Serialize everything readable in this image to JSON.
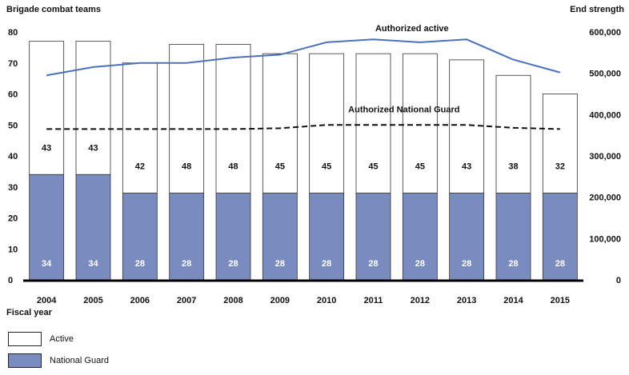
{
  "chart_data": {
    "type": "bar",
    "left_axis_title": "Brigade combat teams",
    "right_axis_title": "End strength",
    "xlabel": "Fiscal year",
    "categories": [
      "2004",
      "2005",
      "2006",
      "2007",
      "2008",
      "2009",
      "2010",
      "2011",
      "2012",
      "2013",
      "2014",
      "2015"
    ],
    "ylim": [
      0,
      80
    ],
    "yticks": [
      0,
      10,
      20,
      30,
      40,
      50,
      60,
      70,
      80
    ],
    "y2lim": [
      0,
      600000
    ],
    "y2ticks": [
      0,
      100000,
      200000,
      300000,
      400000,
      500000,
      600000
    ],
    "y2tick_labels": [
      "0",
      "100,000",
      "200,000",
      "300,000",
      "400,000",
      "500,000",
      "600,000"
    ],
    "stacked": true,
    "series": [
      {
        "name": "National Guard",
        "type": "bar",
        "color": "#7a8bbf",
        "values": [
          34,
          34,
          28,
          28,
          28,
          28,
          28,
          28,
          28,
          28,
          28,
          28
        ]
      },
      {
        "name": "Active",
        "type": "bar",
        "color": "#ffffff",
        "values": [
          43,
          43,
          42,
          48,
          48,
          45,
          45,
          45,
          45,
          43,
          38,
          32
        ]
      },
      {
        "name": "Authorized active",
        "type": "line",
        "axis": "right",
        "style": "solid",
        "color": "#4a72b8",
        "values": [
          495000,
          515000,
          525000,
          525000,
          538000,
          545000,
          575000,
          582000,
          575000,
          582000,
          533000,
          502000
        ]
      },
      {
        "name": "Authorized National Guard",
        "type": "line",
        "axis": "right",
        "style": "dashed",
        "color": "#111111",
        "values": [
          365000,
          365000,
          365000,
          365000,
          365000,
          367000,
          375000,
          375000,
          375000,
          375000,
          368000,
          365000
        ]
      }
    ],
    "legend_position": "bottom-left",
    "grid": false
  },
  "legend": {
    "active": "Active",
    "guard": "National Guard"
  }
}
